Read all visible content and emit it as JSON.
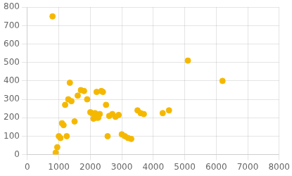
{
  "chart_data": {
    "type": "scatter",
    "x": [
      800,
      900,
      950,
      1000,
      1050,
      1100,
      1150,
      1200,
      1250,
      1300,
      1350,
      1400,
      1500,
      1600,
      1700,
      1800,
      1900,
      2000,
      2050,
      2100,
      2150,
      2200,
      2200,
      2250,
      2300,
      2350,
      2400,
      2500,
      2550,
      2600,
      2700,
      2800,
      2900,
      3000,
      3100,
      3200,
      3300,
      3500,
      3600,
      3700,
      4300,
      4500,
      5100,
      6200
    ],
    "values": [
      750,
      10,
      40,
      100,
      90,
      170,
      160,
      270,
      100,
      300,
      390,
      290,
      180,
      320,
      350,
      345,
      300,
      230,
      225,
      195,
      225,
      200,
      340,
      200,
      220,
      345,
      340,
      270,
      100,
      210,
      220,
      205,
      215,
      110,
      100,
      90,
      85,
      240,
      225,
      220,
      225,
      240,
      510,
      400
    ],
    "color": "#F5B800",
    "xlim": [
      0,
      8000
    ],
    "ylim": [
      0,
      800
    ],
    "xticks": [
      0,
      1000,
      2000,
      3000,
      4000,
      5000,
      6000,
      7000,
      8000
    ],
    "yticks": [
      0,
      100,
      200,
      300,
      400,
      500,
      600,
      700,
      800
    ],
    "grid": true
  }
}
